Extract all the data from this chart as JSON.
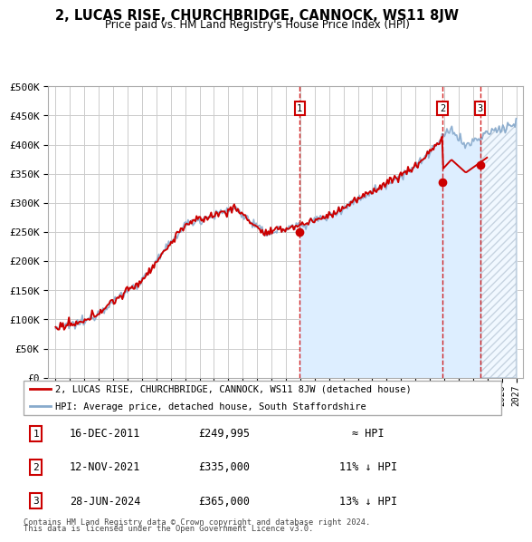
{
  "title": "2, LUCAS RISE, CHURCHBRIDGE, CANNOCK, WS11 8JW",
  "subtitle": "Price paid vs. HM Land Registry's House Price Index (HPI)",
  "ylabel_ticks": [
    "£0",
    "£50K",
    "£100K",
    "£150K",
    "£200K",
    "£250K",
    "£300K",
    "£350K",
    "£400K",
    "£450K",
    "£500K"
  ],
  "ytick_values": [
    0,
    50000,
    100000,
    150000,
    200000,
    250000,
    300000,
    350000,
    400000,
    450000,
    500000
  ],
  "xlim": [
    1994.5,
    2027.5
  ],
  "ylim": [
    0,
    500000
  ],
  "sale_points": [
    {
      "label": "1",
      "date": 2011.96,
      "price": 249995
    },
    {
      "label": "2",
      "date": 2021.87,
      "price": 335000
    },
    {
      "label": "3",
      "date": 2024.49,
      "price": 365000
    }
  ],
  "sale_annotations": [
    {
      "num": "1",
      "date_str": "16-DEC-2011",
      "price_str": "£249,995",
      "rel": "≈ HPI"
    },
    {
      "num": "2",
      "date_str": "12-NOV-2021",
      "price_str": "£335,000",
      "rel": "11% ↓ HPI"
    },
    {
      "num": "3",
      "date_str": "28-JUN-2024",
      "price_str": "£365,000",
      "rel": "13% ↓ HPI"
    }
  ],
  "legend_line1": "2, LUCAS RISE, CHURCHBRIDGE, CANNOCK, WS11 8JW (detached house)",
  "legend_line1_color": "#cc0000",
  "legend_line2": "HPI: Average price, detached house, South Staffordshire",
  "legend_line2_color": "#88aacc",
  "footer": [
    "Contains HM Land Registry data © Crown copyright and database right 2024.",
    "This data is licensed under the Open Government Licence v3.0."
  ],
  "grid_color": "#cccccc",
  "background_color": "#ffffff",
  "hpi_fill_color": "#ddeeff",
  "vline_color": "#cc0000",
  "number_box_color": "#cc0000",
  "hpi_start_year": 1995,
  "hpi_end_year": 2027,
  "fill_start_year": 2011.96,
  "hatch_start_year": 2024.5
}
